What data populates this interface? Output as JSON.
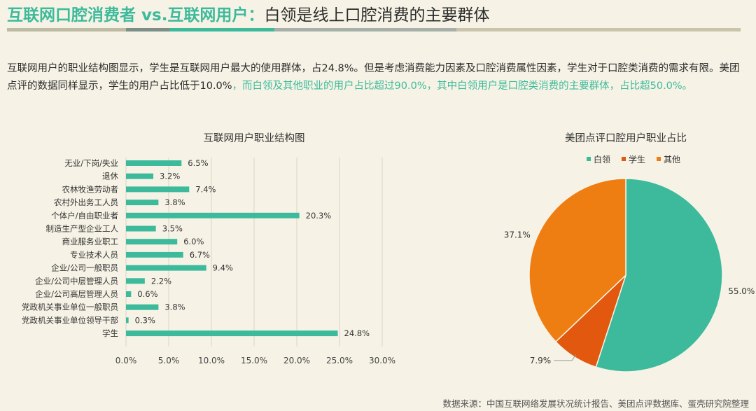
{
  "header": {
    "title_accent": "互联网口腔消费者 vs.互联网用户：",
    "title_rest": "白领是线上口腔消费的主要群体"
  },
  "intro": {
    "part1": "互联网用户的职业结构图显示，学生是互联网用户最大的使用群体，占24.8%。但是考虑消费能力因素及口腔消费属性因素，学生对于口腔类消费的需求有限。美团点评的数据同样显示，学生的用户占比低于10.0%",
    "part2": "，而白领及其他职业的用户占比超过90.0%，其中白领用户是口腔类消费的主要群体，占比超50.0%。"
  },
  "colors": {
    "accent": "#3dba9b",
    "orange": "#ee7d12",
    "dark_orange": "#e1580e"
  },
  "chart_data": [
    {
      "type": "bar",
      "orientation": "horizontal",
      "title": "互联网用户职业结构图",
      "categories": [
        "无业/下岗/失业",
        "退休",
        "农林牧渔劳动者",
        "农村外出务工人员",
        "个体户/自由职业者",
        "制造生产型企业工人",
        "商业服务业职工",
        "专业技术人员",
        "企业/公司一般职员",
        "企业/公司中层管理人员",
        "企业/公司高层管理人员",
        "党政机关事业单位一般职员",
        "党政机关事业单位领导干部",
        "学生"
      ],
      "values": [
        6.5,
        3.2,
        7.4,
        3.8,
        20.3,
        3.5,
        6.0,
        6.7,
        9.4,
        2.2,
        0.6,
        3.8,
        0.3,
        24.8
      ],
      "value_labels": [
        "6.5%",
        "3.2%",
        "7.4%",
        "3.8%",
        "20.3%",
        "3.5%",
        "6.0%",
        "6.7%",
        "9.4%",
        "2.2%",
        "0.6%",
        "3.8%",
        "0.3%",
        "24.8%"
      ],
      "xlim": [
        0,
        30
      ],
      "xticks": [
        "0.0%",
        "5.0%",
        "10.0%",
        "15.0%",
        "20.0%",
        "25.0%",
        "30.0%"
      ],
      "grid": "vertical",
      "color": "#3dba9b"
    },
    {
      "type": "pie",
      "title": "美团点评口腔用户职业占比",
      "legend": "top",
      "slices": [
        {
          "name": "白领",
          "value": 55.0,
          "label": "55.0%",
          "color": "#3dba9b"
        },
        {
          "name": "学生",
          "value": 7.9,
          "label": "7.9%",
          "color": "#e1580e"
        },
        {
          "name": "其他",
          "value": 37.1,
          "label": "37.1%",
          "color": "#ee7d12"
        }
      ]
    }
  ],
  "source": "数据来源：中国互联网络发展状况统计报告、美团点评数据库、蛋壳研究院整理"
}
